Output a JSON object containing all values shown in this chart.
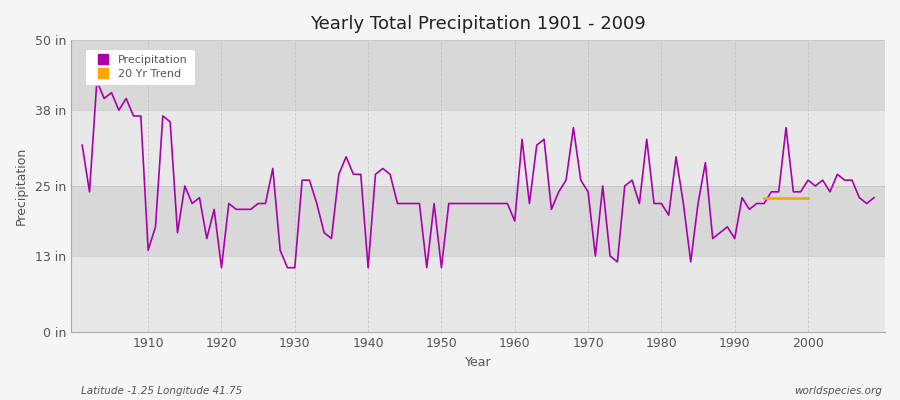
{
  "title": "Yearly Total Precipitation 1901 - 2009",
  "xlabel": "Year",
  "ylabel": "Precipitation",
  "ylim": [
    0,
    50
  ],
  "yticks": [
    0,
    13,
    25,
    38,
    50
  ],
  "ytick_labels": [
    "0 in",
    "13 in",
    "25 in",
    "38 in",
    "50 in"
  ],
  "xlim": [
    1899.5,
    2010.5
  ],
  "years": [
    1901,
    1902,
    1903,
    1904,
    1905,
    1906,
    1907,
    1908,
    1909,
    1910,
    1911,
    1912,
    1913,
    1914,
    1915,
    1916,
    1917,
    1918,
    1919,
    1920,
    1921,
    1922,
    1923,
    1924,
    1925,
    1926,
    1927,
    1928,
    1929,
    1930,
    1931,
    1932,
    1933,
    1934,
    1935,
    1936,
    1937,
    1938,
    1939,
    1940,
    1941,
    1942,
    1943,
    1944,
    1945,
    1946,
    1947,
    1948,
    1949,
    1950,
    1951,
    1952,
    1953,
    1954,
    1955,
    1956,
    1957,
    1958,
    1959,
    1960,
    1961,
    1962,
    1963,
    1964,
    1965,
    1966,
    1967,
    1968,
    1969,
    1970,
    1971,
    1972,
    1973,
    1974,
    1975,
    1976,
    1977,
    1978,
    1979,
    1980,
    1981,
    1982,
    1983,
    1984,
    1985,
    1986,
    1987,
    1988,
    1989,
    1990,
    1991,
    1992,
    1993,
    1994,
    1995,
    1996,
    1997,
    1998,
    1999,
    2000,
    2001,
    2002,
    2003,
    2004,
    2005,
    2006,
    2007,
    2008,
    2009
  ],
  "precip": [
    32,
    24,
    43,
    40,
    41,
    38,
    40,
    37,
    37,
    14,
    18,
    37,
    36,
    17,
    25,
    22,
    23,
    16,
    21,
    11,
    22,
    21,
    21,
    21,
    22,
    22,
    28,
    14,
    11,
    11,
    26,
    26,
    22,
    17,
    16,
    27,
    30,
    27,
    27,
    11,
    27,
    28,
    27,
    22,
    22,
    22,
    22,
    11,
    22,
    11,
    22,
    22,
    22,
    22,
    22,
    22,
    22,
    22,
    22,
    19,
    33,
    22,
    32,
    33,
    21,
    24,
    26,
    35,
    26,
    24,
    13,
    25,
    13,
    12,
    25,
    26,
    22,
    33,
    22,
    22,
    20,
    30,
    22,
    12,
    22,
    29,
    16,
    17,
    18,
    16,
    23,
    21,
    22,
    22,
    24,
    24,
    35,
    24,
    24,
    26,
    25,
    26,
    24,
    27,
    26,
    26,
    23,
    22,
    23
  ],
  "trend_years": [
    1994,
    1995,
    1996,
    1997,
    1998,
    1999,
    2000
  ],
  "trend_values": [
    23.0,
    23.0,
    23.0,
    23.0,
    23.0,
    23.0,
    23.0
  ],
  "line_color": "#aa00aa",
  "trend_color": "#FFA500",
  "bg_color": "#f5f5f5",
  "plot_bg_color": "#f0f0f0",
  "band_color_light": "#e8e8e8",
  "band_color_dark": "#d8d8d8",
  "grid_color": "#cccccc",
  "axis_color": "#aaaaaa",
  "text_color": "#555555",
  "legend_label_precip": "Precipitation",
  "legend_label_trend": "20 Yr Trend",
  "bottom_left_text": "Latitude -1.25 Longitude 41.75",
  "bottom_right_text": "worldspecies.org",
  "xtick_positions": [
    1910,
    1920,
    1930,
    1940,
    1950,
    1960,
    1970,
    1980,
    1990,
    2000
  ]
}
